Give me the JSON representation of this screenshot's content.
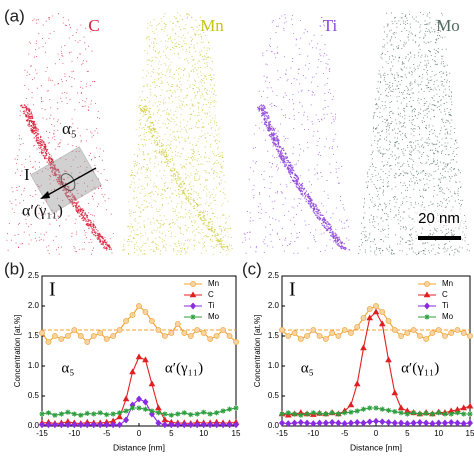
{
  "panel_a": {
    "label": "(a)",
    "elements": [
      {
        "name": "C",
        "color": "#d8203a"
      },
      {
        "name": "Mn",
        "color": "#c8c21a"
      },
      {
        "name": "Ti",
        "color": "#8e44d8"
      },
      {
        "name": "Mo",
        "color": "#4f6a60"
      }
    ],
    "annotations": [
      "α₅",
      "I",
      "α′(γ₁₁)"
    ],
    "scale_bar": "20 nm"
  },
  "chart_data": [
    {
      "type": "line",
      "label": "(b)",
      "annotations": [
        "I",
        "α₅",
        "α′(γ₁₁)"
      ],
      "xlabel": "Distance [nm]",
      "ylabel": "Concentration [at.%]",
      "x": [
        -15,
        -14,
        -13,
        -12,
        -11,
        -10,
        -9,
        -8,
        -7,
        -6,
        -5,
        -4,
        -3,
        -2,
        -1,
        0,
        1,
        2,
        3,
        4,
        5,
        6,
        7,
        8,
        9,
        10,
        11,
        12,
        13,
        14,
        15
      ],
      "xlim": [
        -15,
        15
      ],
      "xticks": [
        -15,
        -10,
        -5,
        0,
        5,
        10,
        15
      ],
      "ylim": [
        0,
        2.5
      ],
      "yticks": [
        {
          "value": 0,
          "label": "0.0"
        },
        0.5,
        {
          "value": 1,
          "label": "1.0"
        },
        1.5,
        {
          "value": 2,
          "label": "2.0"
        },
        2.5
      ],
      "hline": 1.6,
      "legend": "upper right",
      "series": [
        {
          "name": "Mn",
          "color": "#f0a030",
          "marker": "circle",
          "values": [
            1.55,
            1.4,
            1.5,
            1.45,
            1.5,
            1.6,
            1.5,
            1.4,
            1.5,
            1.55,
            1.45,
            1.5,
            1.6,
            1.75,
            1.85,
            2.0,
            1.9,
            1.75,
            1.6,
            1.5,
            1.55,
            1.7,
            1.55,
            1.5,
            1.6,
            1.55,
            1.45,
            1.5,
            1.6,
            1.5,
            1.4
          ]
        },
        {
          "name": "C",
          "color": "#e02020",
          "marker": "triangle",
          "values": [
            0.05,
            0.06,
            0.04,
            0.05,
            0.07,
            0.05,
            0.04,
            0.06,
            0.05,
            0.05,
            0.06,
            0.08,
            0.15,
            0.45,
            0.9,
            1.15,
            1.1,
            0.7,
            0.3,
            0.1,
            0.06,
            0.05,
            0.05,
            0.04,
            0.06,
            0.05,
            0.05,
            0.06,
            0.05,
            0.05,
            0.06
          ]
        },
        {
          "name": "Ti",
          "color": "#8a2be2",
          "marker": "diamond",
          "values": [
            0.02,
            0.02,
            0.02,
            0.02,
            0.02,
            0.02,
            0.02,
            0.02,
            0.02,
            0.02,
            0.02,
            0.02,
            0.02,
            0.1,
            0.35,
            0.45,
            0.4,
            0.2,
            0.05,
            0.02,
            0.02,
            0.02,
            0.02,
            0.02,
            0.02,
            0.02,
            0.02,
            0.02,
            0.02,
            0.02,
            0.02
          ]
        },
        {
          "name": "Mo",
          "color": "#2e9e3e",
          "marker": "star",
          "values": [
            0.2,
            0.22,
            0.18,
            0.2,
            0.23,
            0.2,
            0.18,
            0.21,
            0.2,
            0.22,
            0.19,
            0.2,
            0.22,
            0.25,
            0.3,
            0.3,
            0.28,
            0.25,
            0.22,
            0.2,
            0.18,
            0.2,
            0.22,
            0.19,
            0.2,
            0.23,
            0.2,
            0.22,
            0.25,
            0.28,
            0.3
          ]
        }
      ]
    },
    {
      "type": "line",
      "label": "(c)",
      "annotations": [
        "I",
        "α₅",
        "α′(γ₁₁)"
      ],
      "xlabel": "Distance [nm]",
      "ylabel": "Concentration [at.%]",
      "x": [
        -15,
        -14,
        -13,
        -12,
        -11,
        -10,
        -9,
        -8,
        -7,
        -6,
        -5,
        -4,
        -3,
        -2,
        -1,
        0,
        1,
        2,
        3,
        4,
        5,
        6,
        7,
        8,
        9,
        10,
        11,
        12,
        13,
        14,
        15
      ],
      "xlim": [
        -15,
        15
      ],
      "xticks": [
        -15,
        -10,
        -5,
        0,
        5,
        10,
        15
      ],
      "ylim": [
        0,
        2.5
      ],
      "yticks": [
        {
          "value": 0,
          "label": "0.0"
        },
        0.5,
        {
          "value": 1,
          "label": "1.0"
        },
        1.5,
        {
          "value": 2,
          "label": "2.0"
        },
        2.5
      ],
      "hline": 1.6,
      "legend": "upper right",
      "series": [
        {
          "name": "Mn",
          "color": "#f0a030",
          "marker": "circle",
          "values": [
            1.6,
            1.5,
            1.55,
            1.45,
            1.5,
            1.6,
            1.5,
            1.45,
            1.55,
            1.5,
            1.6,
            1.55,
            1.65,
            1.8,
            1.95,
            2.0,
            1.9,
            1.75,
            1.6,
            1.5,
            1.55,
            1.6,
            1.5,
            1.45,
            1.55,
            1.6,
            1.5,
            1.55,
            1.6,
            1.55,
            1.5
          ]
        },
        {
          "name": "C",
          "color": "#e02020",
          "marker": "triangle",
          "values": [
            0.2,
            0.18,
            0.2,
            0.22,
            0.2,
            0.19,
            0.21,
            0.2,
            0.22,
            0.2,
            0.25,
            0.35,
            0.7,
            1.3,
            1.8,
            1.9,
            1.7,
            1.1,
            0.55,
            0.3,
            0.25,
            0.22,
            0.2,
            0.22,
            0.2,
            0.23,
            0.22,
            0.25,
            0.27,
            0.3,
            0.33
          ]
        },
        {
          "name": "Ti",
          "color": "#8a2be2",
          "marker": "diamond",
          "values": [
            0.05,
            0.04,
            0.05,
            0.06,
            0.05,
            0.04,
            0.05,
            0.05,
            0.06,
            0.05,
            0.04,
            0.05,
            0.06,
            0.05,
            0.07,
            0.08,
            0.07,
            0.06,
            0.05,
            0.05,
            0.04,
            0.05,
            0.06,
            0.05,
            0.04,
            0.05,
            0.05,
            0.06,
            0.05,
            0.04,
            0.05
          ]
        },
        {
          "name": "Mo",
          "color": "#2e9e3e",
          "marker": "star",
          "values": [
            0.2,
            0.22,
            0.2,
            0.18,
            0.2,
            0.22,
            0.21,
            0.2,
            0.22,
            0.2,
            0.22,
            0.23,
            0.25,
            0.28,
            0.3,
            0.3,
            0.28,
            0.26,
            0.24,
            0.22,
            0.2,
            0.22,
            0.2,
            0.21,
            0.2,
            0.22,
            0.2,
            0.2,
            0.22,
            0.2,
            0.2
          ]
        }
      ]
    }
  ]
}
